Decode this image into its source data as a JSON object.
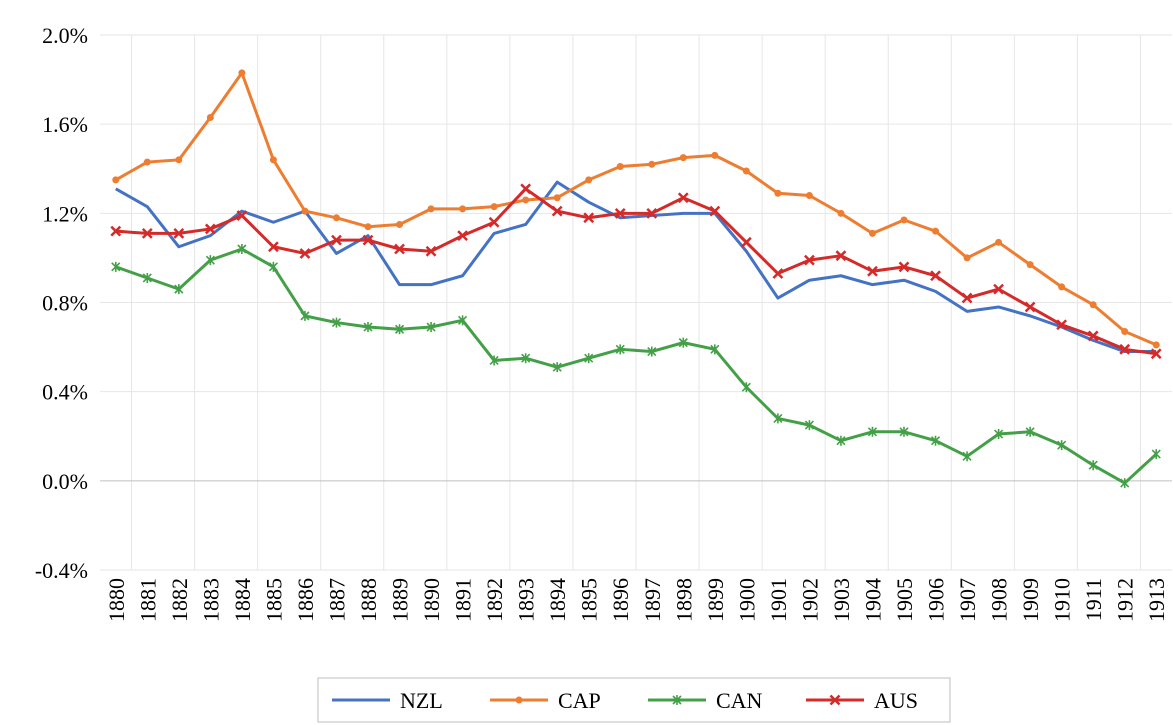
{
  "chart_data": {
    "type": "line",
    "categories": [
      "1880",
      "1881",
      "1882",
      "1883",
      "1884",
      "1885",
      "1886",
      "1887",
      "1888",
      "1889",
      "1890",
      "1891",
      "1892",
      "1893",
      "1894",
      "1895",
      "1896",
      "1897",
      "1898",
      "1899",
      "1900",
      "1901",
      "1902",
      "1903",
      "1904",
      "1905",
      "1906",
      "1907",
      "1908",
      "1909",
      "1910",
      "1911",
      "1912",
      "1913"
    ],
    "series": [
      {
        "name": "NZL",
        "color": "#4472c4",
        "marker": "none",
        "values": [
          1.31,
          1.23,
          1.05,
          1.1,
          1.21,
          1.16,
          1.21,
          1.02,
          1.1,
          0.88,
          0.88,
          0.92,
          1.11,
          1.15,
          1.34,
          1.25,
          1.18,
          1.19,
          1.2,
          1.2,
          1.03,
          0.82,
          0.9,
          0.92,
          0.88,
          0.9,
          0.85,
          0.76,
          0.78,
          0.74,
          0.69,
          0.63,
          0.58,
          0.58
        ]
      },
      {
        "name": "CAP",
        "color": "#ed7d31",
        "marker": "circle",
        "values": [
          1.35,
          1.43,
          1.44,
          1.63,
          1.83,
          1.44,
          1.21,
          1.18,
          1.14,
          1.15,
          1.22,
          1.22,
          1.23,
          1.26,
          1.27,
          1.35,
          1.41,
          1.42,
          1.45,
          1.46,
          1.39,
          1.29,
          1.28,
          1.2,
          1.11,
          1.17,
          1.12,
          1.0,
          1.07,
          0.97,
          0.87,
          0.79,
          0.67,
          0.61
        ]
      },
      {
        "name": "CAN",
        "color": "#43a047",
        "marker": "star",
        "values": [
          0.96,
          0.91,
          0.86,
          0.99,
          1.04,
          0.96,
          0.74,
          0.71,
          0.69,
          0.68,
          0.69,
          0.72,
          0.54,
          0.55,
          0.51,
          0.55,
          0.59,
          0.58,
          0.62,
          0.59,
          0.42,
          0.28,
          0.25,
          0.18,
          0.22,
          0.22,
          0.18,
          0.11,
          0.21,
          0.22,
          0.16,
          0.07,
          -0.01,
          0.12
        ]
      },
      {
        "name": "AUS",
        "color": "#d42a2a",
        "marker": "x",
        "values": [
          1.12,
          1.11,
          1.11,
          1.13,
          1.19,
          1.05,
          1.02,
          1.08,
          1.08,
          1.04,
          1.03,
          1.1,
          1.16,
          1.31,
          1.21,
          1.18,
          1.2,
          1.2,
          1.27,
          1.21,
          1.07,
          0.93,
          0.99,
          1.01,
          0.94,
          0.96,
          0.92,
          0.82,
          0.86,
          0.78,
          0.7,
          0.65,
          0.59,
          0.57
        ]
      }
    ],
    "ylim": [
      -0.4,
      2.0
    ],
    "yticks": [
      {
        "value": -0.4,
        "label": "-0.4%"
      },
      {
        "value": 0,
        "label": "0.0%"
      },
      {
        "value": 0.4,
        "label": "0.4%"
      },
      {
        "value": 0.8,
        "label": "0.8%"
      },
      {
        "value": 1.2,
        "label": "1.2%"
      },
      {
        "value": 1.6,
        "label": "1.6%"
      },
      {
        "value": 2.0,
        "label": "2.0%"
      }
    ],
    "grid": true,
    "legend": "bottom"
  }
}
